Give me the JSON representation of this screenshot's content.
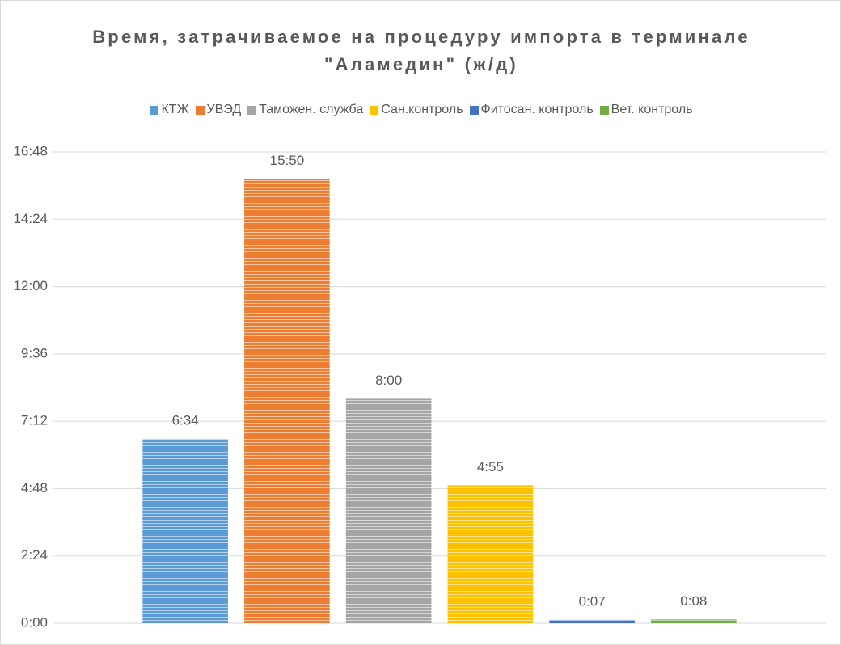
{
  "chart_data": {
    "type": "bar",
    "title": "Время, затрачиваемое на процедуру импорта в терминале \"Аламедин\" (ж/д)",
    "categories": [
      null
    ],
    "series": [
      {
        "name": "КТЖ",
        "color": "#5b9bd5",
        "values": [
          6.5667
        ],
        "value_labels": [
          "6:34"
        ]
      },
      {
        "name": "УВЭД",
        "color": "#ed7d31",
        "values": [
          15.8333
        ],
        "value_labels": [
          "15:50"
        ]
      },
      {
        "name": "Таможен. служба",
        "color": "#a5a5a5",
        "values": [
          8
        ],
        "value_labels": [
          "8:00"
        ]
      },
      {
        "name": "Сан.контроль",
        "color": "#ffc000",
        "values": [
          4.9167
        ],
        "value_labels": [
          "4:55"
        ]
      },
      {
        "name": "Фитосан. контроль",
        "color": "#4472c4",
        "values": [
          0.1167
        ],
        "value_labels": [
          "0:07"
        ]
      },
      {
        "name": "Вет. контроль",
        "color": "#70ad47",
        "values": [
          0.1333
        ],
        "value_labels": [
          "0:08"
        ]
      }
    ],
    "ylim": [
      0,
      16.8
    ],
    "yticks": [
      {
        "value": 0,
        "label": "0:00"
      },
      {
        "value": 2.4,
        "label": "2:24"
      },
      {
        "value": 4.8,
        "label": "4:48"
      },
      {
        "value": 7.2,
        "label": "7:12"
      },
      {
        "value": 9.6,
        "label": "9:36"
      },
      {
        "value": 12,
        "label": "12:00"
      },
      {
        "value": 14.4,
        "label": "14:24"
      },
      {
        "value": 16.8,
        "label": "16:48"
      }
    ],
    "grid": true,
    "legend": "top"
  }
}
